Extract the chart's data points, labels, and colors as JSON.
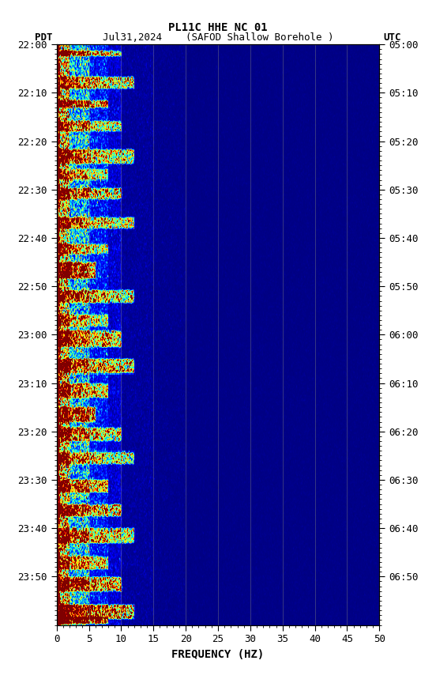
{
  "title_line1": "PL11C HHE NC 01",
  "title_line2": "Jul31,2024    (SAFOD Shallow Borehole )",
  "left_label": "PDT",
  "right_label": "UTC",
  "xlabel": "FREQUENCY (HZ)",
  "freq_min": 0,
  "freq_max": 50,
  "freq_ticks": [
    0,
    5,
    10,
    15,
    20,
    25,
    30,
    35,
    40,
    45,
    50
  ],
  "time_labels_left": [
    "22:00",
    "22:10",
    "22:20",
    "22:30",
    "22:40",
    "22:50",
    "23:00",
    "23:10",
    "23:20",
    "23:30",
    "23:40",
    "23:50"
  ],
  "time_labels_right": [
    "05:00",
    "05:10",
    "05:20",
    "05:30",
    "05:40",
    "05:50",
    "06:00",
    "06:10",
    "06:20",
    "06:30",
    "06:40",
    "06:50"
  ],
  "n_time_steps": 720,
  "n_freq_steps": 500,
  "background_color": "#ffffff",
  "figsize": [
    5.52,
    8.64
  ],
  "dpi": 100
}
